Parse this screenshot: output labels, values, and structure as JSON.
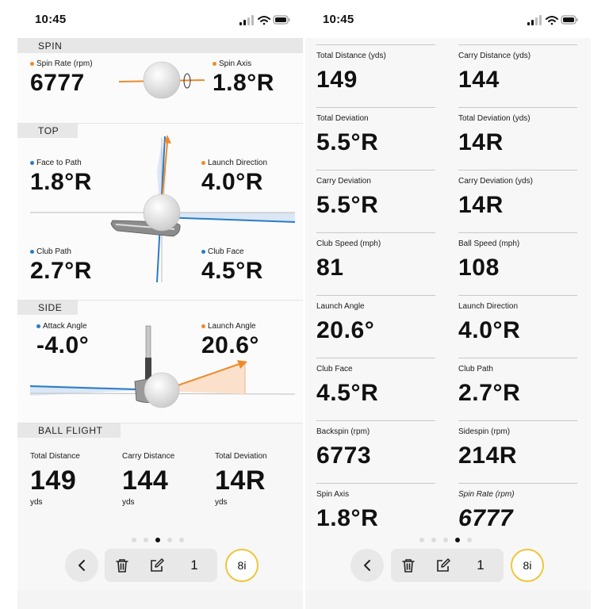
{
  "colors": {
    "orange": "#ef8a2c",
    "blue": "#2a7bc9",
    "club_ring": "#f0c53b"
  },
  "left": {
    "time": "10:45",
    "spin": {
      "header": "SPIN",
      "spin_rate": {
        "label": "Spin Rate (rpm)",
        "value": "6777"
      },
      "spin_axis": {
        "label": "Spin Axis",
        "value": "1.8°R"
      }
    },
    "top": {
      "header": "TOP",
      "face_to_path": {
        "label": "Face to Path",
        "value": "1.8°R"
      },
      "launch_direction": {
        "label": "Launch Direction",
        "value": "4.0°R"
      },
      "club_path": {
        "label": "Club Path",
        "value": "2.7°R"
      },
      "club_face": {
        "label": "Club Face",
        "value": "4.5°R"
      }
    },
    "side": {
      "header": "SIDE",
      "attack_angle": {
        "label": "Attack Angle",
        "value": "-4.0°"
      },
      "launch_angle": {
        "label": "Launch Angle",
        "value": "20.6°"
      }
    },
    "ball_flight": {
      "header": "BALL FLIGHT",
      "items": [
        {
          "label": "Total Distance",
          "value": "149",
          "unit": "yds"
        },
        {
          "label": "Carry Distance",
          "value": "144",
          "unit": "yds"
        },
        {
          "label": "Total Deviation",
          "value": "14R",
          "unit": "yds"
        }
      ]
    },
    "pager": {
      "count": 5,
      "active": 2
    },
    "toolbar": {
      "shot_number": "1",
      "club": "8i"
    }
  },
  "right": {
    "time": "10:45",
    "cells": [
      {
        "label": "Total Distance (yds)",
        "value": "149"
      },
      {
        "label": "Carry Distance (yds)",
        "value": "144"
      },
      {
        "label": "Total Deviation",
        "value": "5.5°R"
      },
      {
        "label": "Total Deviation (yds)",
        "value": "14R"
      },
      {
        "label": "Carry Deviation",
        "value": "5.5°R"
      },
      {
        "label": "Carry Deviation (yds)",
        "value": "14R"
      },
      {
        "label": "Club Speed (mph)",
        "value": "81"
      },
      {
        "label": "Ball Speed (mph)",
        "value": "108"
      },
      {
        "label": "Launch Angle",
        "value": "20.6°"
      },
      {
        "label": "Launch Direction",
        "value": "4.0°R"
      },
      {
        "label": "Club Face",
        "value": "4.5°R"
      },
      {
        "label": "Club Path",
        "value": "2.7°R"
      },
      {
        "label": "Backspin (rpm)",
        "value": "6773"
      },
      {
        "label": "Sidespin (rpm)",
        "value": "214R"
      },
      {
        "label": "Spin Axis",
        "value": "1.8°R"
      },
      {
        "label": "Spin Rate (rpm)",
        "value": "6777"
      }
    ],
    "pager": {
      "count": 5,
      "active": 3
    },
    "toolbar": {
      "shot_number": "1",
      "club": "8i"
    }
  }
}
